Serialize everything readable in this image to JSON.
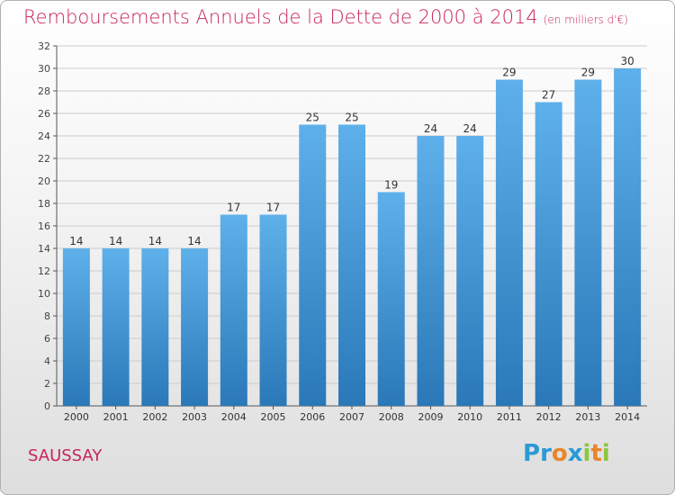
{
  "title": "Remboursements Annuels de la Dette de 2000 à 2014",
  "unit": "(en milliers d'€)",
  "city": "SAUSSAY",
  "logo": {
    "letters": [
      "P",
      "r",
      "o",
      "x",
      "i",
      "t",
      "i"
    ],
    "colors": [
      "#2a9ad6",
      "#2a9ad6",
      "#e8862a",
      "#2a9ad6",
      "#8cc63f",
      "#e8862a",
      "#8cc63f"
    ]
  },
  "colors": {
    "title": "#c8245a",
    "bar_top": "#5eb0ea",
    "bar_bottom": "#2a78b8",
    "grid": "#cccccc"
  },
  "chart_data": {
    "type": "bar",
    "title": "Remboursements Annuels de la Dette de 2000 à 2014",
    "xlabel": "",
    "ylabel": "",
    "ylim": [
      0,
      32
    ],
    "y_ticks": [
      0,
      2,
      4,
      6,
      8,
      10,
      12,
      14,
      16,
      18,
      20,
      22,
      24,
      26,
      28,
      30,
      32
    ],
    "grid": true,
    "categories": [
      "2000",
      "2001",
      "2002",
      "2003",
      "2004",
      "2005",
      "2006",
      "2007",
      "2008",
      "2009",
      "2010",
      "2011",
      "2012",
      "2013",
      "2014"
    ],
    "values": [
      14,
      14,
      14,
      14,
      17,
      17,
      25,
      25,
      19,
      24,
      24,
      29,
      27,
      29,
      30
    ]
  }
}
